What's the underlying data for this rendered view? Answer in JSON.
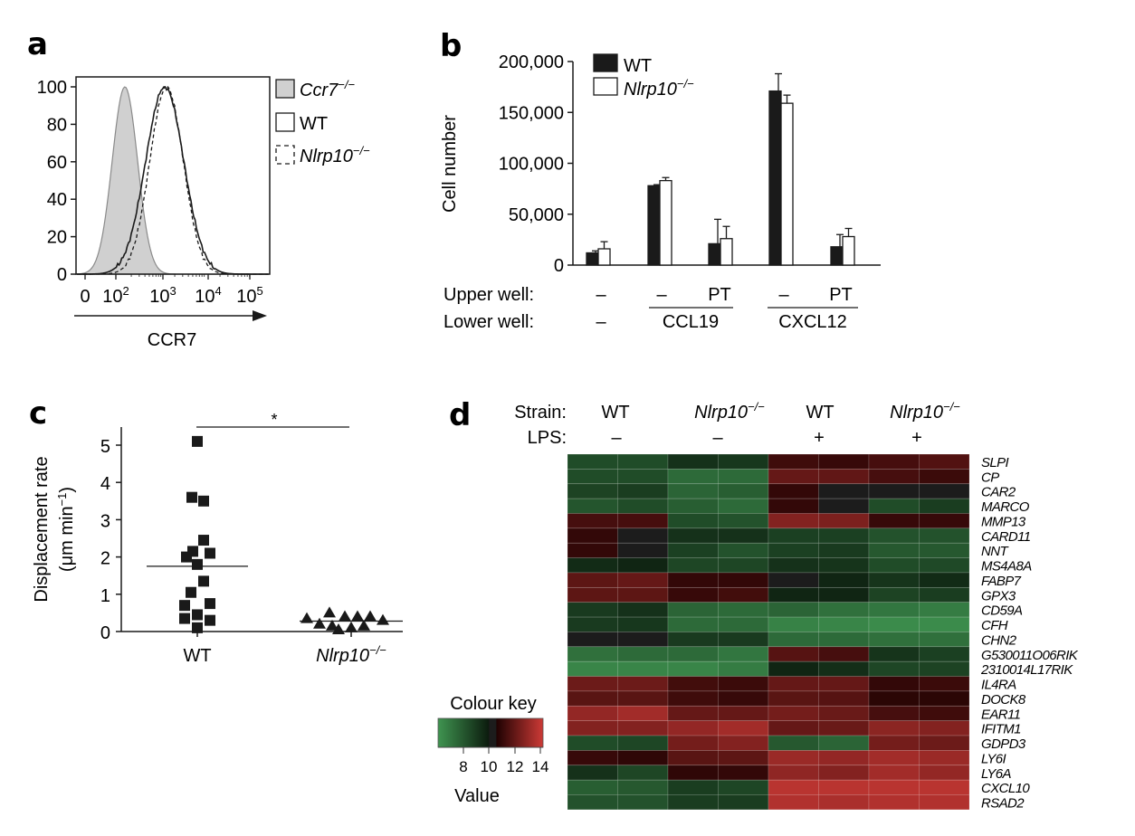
{
  "panels": {
    "a": "a",
    "b": "b",
    "c": "c",
    "d": "d"
  },
  "chart_data": [
    {
      "id": "a",
      "type": "area",
      "title": "",
      "xlabel": "CCR7",
      "ylabel": "",
      "xscale": "biexponential",
      "x_tick_labels": [
        {
          "base": "0",
          "exp": ""
        },
        {
          "base": "10",
          "exp": "2"
        },
        {
          "base": "10",
          "exp": "3"
        },
        {
          "base": "10",
          "exp": "4"
        },
        {
          "base": "10",
          "exp": "5"
        }
      ],
      "y_tick_labels": [
        "0",
        "20",
        "40",
        "60",
        "80",
        "100"
      ],
      "ylim": [
        0,
        100
      ],
      "legend": [
        {
          "name": "Ccr7",
          "sup": "−/−",
          "style": "filled-grey"
        },
        {
          "name": "WT",
          "sup": "",
          "style": "solid"
        },
        {
          "name": "Nlrp10",
          "sup": "−/−",
          "style": "dashed"
        }
      ],
      "legend_position": "right",
      "series": [
        {
          "name": "Ccr7−/−",
          "peak_log10": 2.2,
          "width_log10": 0.28,
          "peak": 100
        },
        {
          "name": "WT",
          "peak_log10": 3.08,
          "width_log10": 0.42,
          "peak": 100
        },
        {
          "name": "Nlrp10−/−",
          "peak_log10": 3.12,
          "width_log10": 0.37,
          "peak": 100
        }
      ]
    },
    {
      "id": "b",
      "type": "bar",
      "ylabel": "Cell number",
      "ylim": [
        0,
        200000
      ],
      "y_tick_labels": [
        "0",
        "50,000",
        "100,000",
        "150,000",
        "200,000"
      ],
      "y_ticks": [
        0,
        50000,
        100000,
        150000,
        200000
      ],
      "legend": [
        {
          "name": "WT",
          "sup": "",
          "style": "filled-black"
        },
        {
          "name": "Nlrp10",
          "sup": "−/−",
          "style": "open"
        }
      ],
      "legend_position": "top-left",
      "categories": [
        "1",
        "2",
        "3",
        "4",
        "5"
      ],
      "upper_well_label": "Upper well:",
      "lower_well_label": "Lower well:",
      "upper_well": [
        "–",
        "–",
        "PT",
        "–",
        "PT"
      ],
      "lower_well": [
        "–",
        "CCL19",
        "CXCL12"
      ],
      "series": [
        {
          "name": "WT",
          "values": [
            12000,
            78000,
            21000,
            171000,
            18000
          ],
          "error": [
            2000,
            1000,
            24000,
            17000,
            12000
          ]
        },
        {
          "name": "Nlrp10−/−",
          "values": [
            16000,
            83000,
            26000,
            159000,
            28000
          ],
          "error": [
            7000,
            3000,
            12000,
            8000,
            8000
          ]
        }
      ]
    },
    {
      "id": "c",
      "type": "scatter",
      "ylabel_line1": "Displacement rate",
      "ylabel_line2": "(μm min",
      "ylabel_sup": "−1",
      "ylabel_close": ")",
      "ylim": [
        0,
        5.5
      ],
      "y_tick_labels": [
        "0",
        "1",
        "2",
        "3",
        "4",
        "5"
      ],
      "categories": [
        {
          "name": "WT",
          "sup": ""
        },
        {
          "name": "Nlrp10",
          "sup": "−/−"
        }
      ],
      "significance": "*",
      "series": [
        {
          "name": "WT",
          "marker": "square",
          "mean": 1.75,
          "values": [
            5.1,
            3.6,
            3.5,
            2.45,
            2.15,
            2.0,
            2.1,
            1.8,
            1.35,
            1.05,
            0.7,
            0.75,
            0.35,
            0.45,
            0.3,
            0.1
          ]
        },
        {
          "name": "Nlrp10−/−",
          "marker": "triangle",
          "mean": 0.28,
          "values": [
            0.35,
            0.2,
            0.5,
            0.15,
            0.4,
            0.05,
            0.4,
            0.1,
            0.4,
            0.15,
            0.3
          ]
        }
      ]
    },
    {
      "id": "d",
      "type": "heatmap",
      "strain_label": "Strain:",
      "lps_label": "LPS:",
      "groups": [
        {
          "strain": "WT",
          "sup": "",
          "italic": false,
          "lps": "–"
        },
        {
          "strain": "Nlrp10",
          "sup": "−/−",
          "italic": true,
          "lps": "–"
        },
        {
          "strain": "WT",
          "sup": "",
          "italic": false,
          "lps": "+"
        },
        {
          "strain": "Nlrp10",
          "sup": "−/−",
          "italic": true,
          "lps": "+"
        }
      ],
      "rows": [
        "SLPI",
        "CP",
        "CAR2",
        "MARCO",
        "MMP13",
        "CARD11",
        "NNT",
        "MS4A8A",
        "FABP7",
        "GPX3",
        "CD59A",
        "CFH",
        "CHN2",
        "G530011O06RIK",
        "2310014L17RIK",
        "IL4RA",
        "DOCK8",
        "EAR11",
        "IFITM1",
        "GDPD3",
        "LY6I",
        "LY6A",
        "CXCL10",
        "RSAD2"
      ],
      "values": [
        [
          8.4,
          8.4,
          9.3,
          9.1,
          10.8,
          10.6,
          11.0,
          11.3
        ],
        [
          8.4,
          8.4,
          7.4,
          7.4,
          11.8,
          11.7,
          11.0,
          10.7
        ],
        [
          8.7,
          8.9,
          7.6,
          7.8,
          10.5,
          10.0,
          10.0,
          10.0
        ],
        [
          8.1,
          8.4,
          7.8,
          7.4,
          10.5,
          10.0,
          8.4,
          8.9
        ],
        [
          11.0,
          11.0,
          8.4,
          8.2,
          12.6,
          12.4,
          10.6,
          10.6
        ],
        [
          10.5,
          10.0,
          9.3,
          9.3,
          8.8,
          8.8,
          8.2,
          8.2
        ],
        [
          10.5,
          10.0,
          8.8,
          8.2,
          8.8,
          9.0,
          8.0,
          8.0
        ],
        [
          9.5,
          9.7,
          8.6,
          8.6,
          9.3,
          9.2,
          8.4,
          8.5
        ],
        [
          11.6,
          11.8,
          10.5,
          10.5,
          10.0,
          9.7,
          9.2,
          9.5
        ],
        [
          11.6,
          11.6,
          10.6,
          10.9,
          9.7,
          9.7,
          8.7,
          8.9
        ],
        [
          9.0,
          9.3,
          7.6,
          7.4,
          7.6,
          7.2,
          7.0,
          6.8
        ],
        [
          9.0,
          9.1,
          7.4,
          7.4,
          6.6,
          6.5,
          6.3,
          6.3
        ],
        [
          10.0,
          10.0,
          9.0,
          9.0,
          7.4,
          7.4,
          7.2,
          7.2
        ],
        [
          7.2,
          7.4,
          7.4,
          7.0,
          11.4,
          11.0,
          9.2,
          8.8
        ],
        [
          6.5,
          6.5,
          6.5,
          6.8,
          9.7,
          9.4,
          8.6,
          8.7
        ],
        [
          12.0,
          12.0,
          10.9,
          10.7,
          11.8,
          11.8,
          10.5,
          10.7
        ],
        [
          11.5,
          11.5,
          10.8,
          10.6,
          11.5,
          11.4,
          10.3,
          10.3
        ],
        [
          13.0,
          13.4,
          11.8,
          11.8,
          12.2,
          11.9,
          11.0,
          10.8
        ],
        [
          12.6,
          12.6,
          13.0,
          13.4,
          11.8,
          11.9,
          12.8,
          12.6
        ],
        [
          8.4,
          8.6,
          12.2,
          12.6,
          8.0,
          7.6,
          12.2,
          12.0
        ],
        [
          10.6,
          10.4,
          11.5,
          11.6,
          13.2,
          13.0,
          13.4,
          13.2
        ],
        [
          9.3,
          8.6,
          10.4,
          10.5,
          12.9,
          12.6,
          13.4,
          13.0
        ],
        [
          7.8,
          8.0,
          8.9,
          8.6,
          14.0,
          14.0,
          14.0,
          14.0
        ],
        [
          8.2,
          8.2,
          8.9,
          8.9,
          13.8,
          13.6,
          13.8,
          13.8
        ]
      ],
      "colour_key_title": "Colour key",
      "colour_key_xlabel": "Value",
      "colour_key_ticks": [
        "8",
        "10",
        "12",
        "14"
      ],
      "colour_range": [
        6,
        14.5
      ],
      "colours": {
        "low": "#3f9450",
        "mid": "#1c1c1c",
        "high": "#cc3a36"
      }
    }
  ]
}
